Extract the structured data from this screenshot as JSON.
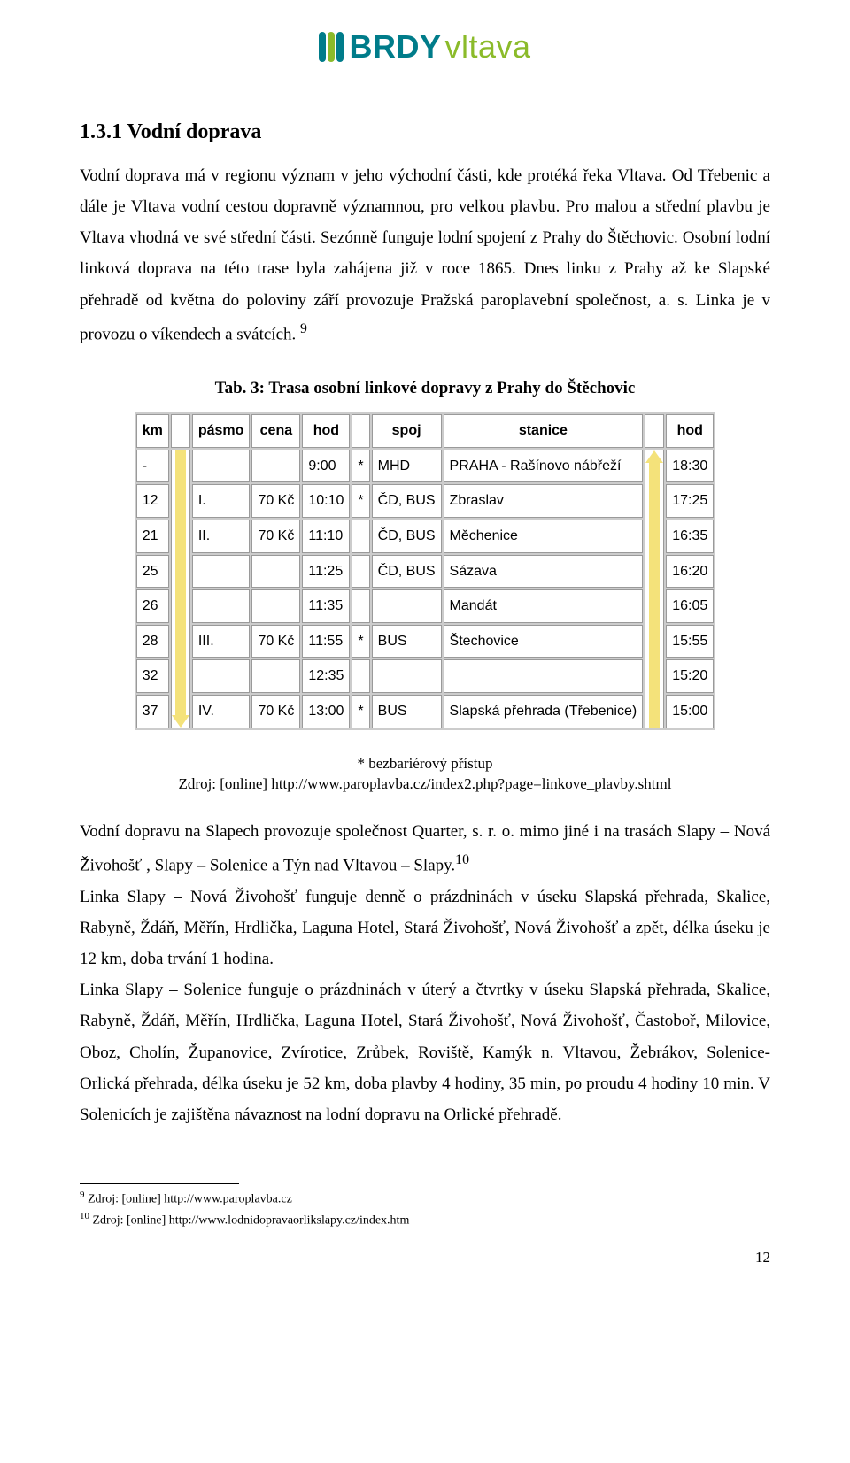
{
  "logo": {
    "brdy_text": "BRDY",
    "brdy_color": "#007c8a",
    "vltava_text": "vltava",
    "vltava_color": "#8bbb2a",
    "stripe_colors": [
      "#007c8a",
      "#8bbb2a",
      "#007c8a"
    ]
  },
  "heading": "1.3.1 Vodní doprava",
  "para1": "Vodní doprava má v regionu význam v jeho východní části, kde protéká řeka Vltava. Od Třebenic a dále je Vltava vodní cestou dopravně významnou, pro velkou plavbu. Pro malou a střední plavbu je Vltava vhodná ve své střední části. Sezónně funguje lodní spojení z Prahy do Štěchovic. Osobní lodní linková doprava na této trase byla zahájena již v roce 1865. Dnes linku z Prahy až ke Slapské přehradě od května do poloviny září provozuje Pražská paroplavební společnost, a. s. Linka je v provozu o víkendech a svátcích.",
  "footnote_ref_1": "9",
  "table_caption": "Tab. 3: Trasa osobní linkové dopravy z Prahy do Štěchovic",
  "table": {
    "headers": {
      "km": "km",
      "pasmo": "pásmo",
      "cena": "cena",
      "hod_l": "hod",
      "spoj": "spoj",
      "stanice": "stanice",
      "hod_r": "hod"
    },
    "arrow_color": "#f4e27a",
    "rows": [
      {
        "km": "-",
        "pasmo": "",
        "cena": "",
        "hod_l": "9:00",
        "star": "*",
        "spoj": "MHD",
        "stanice": "PRAHA - Rašínovo nábřeží",
        "hod_r": "18:30"
      },
      {
        "km": "12",
        "pasmo": "I.",
        "cena": "70 Kč",
        "hod_l": "10:10",
        "star": "*",
        "spoj": "ČD, BUS",
        "stanice": "Zbraslav",
        "hod_r": "17:25"
      },
      {
        "km": "21",
        "pasmo": "II.",
        "cena": "70 Kč",
        "hod_l": "11:10",
        "star": "",
        "spoj": "ČD, BUS",
        "stanice": "Měchenice",
        "hod_r": "16:35"
      },
      {
        "km": "25",
        "pasmo": "",
        "cena": "",
        "hod_l": "11:25",
        "star": "",
        "spoj": "ČD, BUS",
        "stanice": "Sázava",
        "hod_r": "16:20"
      },
      {
        "km": "26",
        "pasmo": "",
        "cena": "",
        "hod_l": "11:35",
        "star": "",
        "spoj": "",
        "stanice": "Mandát",
        "hod_r": "16:05"
      },
      {
        "km": "28",
        "pasmo": "III.",
        "cena": "70 Kč",
        "hod_l": "11:55",
        "star": "*",
        "spoj": "BUS",
        "stanice": "Štechovice",
        "hod_r": "15:55"
      },
      {
        "km": "32",
        "pasmo": "",
        "cena": "",
        "hod_l": "12:35",
        "star": "",
        "spoj": "",
        "stanice": "",
        "hod_r": "15:20"
      },
      {
        "km": "37",
        "pasmo": "IV.",
        "cena": "70 Kč",
        "hod_l": "13:00",
        "star": "*",
        "spoj": "BUS",
        "stanice": "Slapská přehrada (Třebenice)",
        "hod_r": "15:00"
      }
    ]
  },
  "source_block": {
    "line1": "* bezbariérový přístup",
    "line2": "Zdroj: [online] http://www.paroplavba.cz/index2.php?page=linkove_plavby.shtml"
  },
  "para2": "Vodní dopravu na Slapech provozuje společnost Quarter, s. r. o. mimo jiné i na trasách Slapy – Nová Živohošť , Slapy – Solenice a Týn nad Vltavou – Slapy.",
  "footnote_ref_2": "10",
  "para3": "Linka Slapy – Nová Živohošť funguje denně o prázdninách v úseku Slapská přehrada, Skalice, Rabyně, Ždáň, Měřín, Hrdlička, Laguna Hotel, Stará Živohošť, Nová Živohošť a zpět, délka úseku je 12 km, doba trvání 1 hodina.",
  "para4": "Linka Slapy – Solenice funguje o prázdninách v úterý a čtvrtky v úseku Slapská přehrada, Skalice, Rabyně, Ždáň, Měřín, Hrdlička, Laguna Hotel, Stará Živohošť, Nová Živohošť, Častoboř, Milovice, Oboz, Cholín, Županovice, Zvírotice, Zrůbek, Roviště, Kamýk n. Vltavou, Žebrákov, Solenice-Orlická přehrada, délka úseku je 52 km, doba plavby 4 hodiny, 35 min, po proudu 4 hodiny 10 min. V Solenicích je zajištěna návaznost na lodní dopravu na Orlické přehradě.",
  "footnotes": {
    "f1_num": "9",
    "f1_text": " Zdroj: [online] http://www.paroplavba.cz",
    "f2_num": "10",
    "f2_text": " Zdroj: [online] http://www.lodnidopravaorlikslapy.cz/index.htm"
  },
  "page_number": "12"
}
